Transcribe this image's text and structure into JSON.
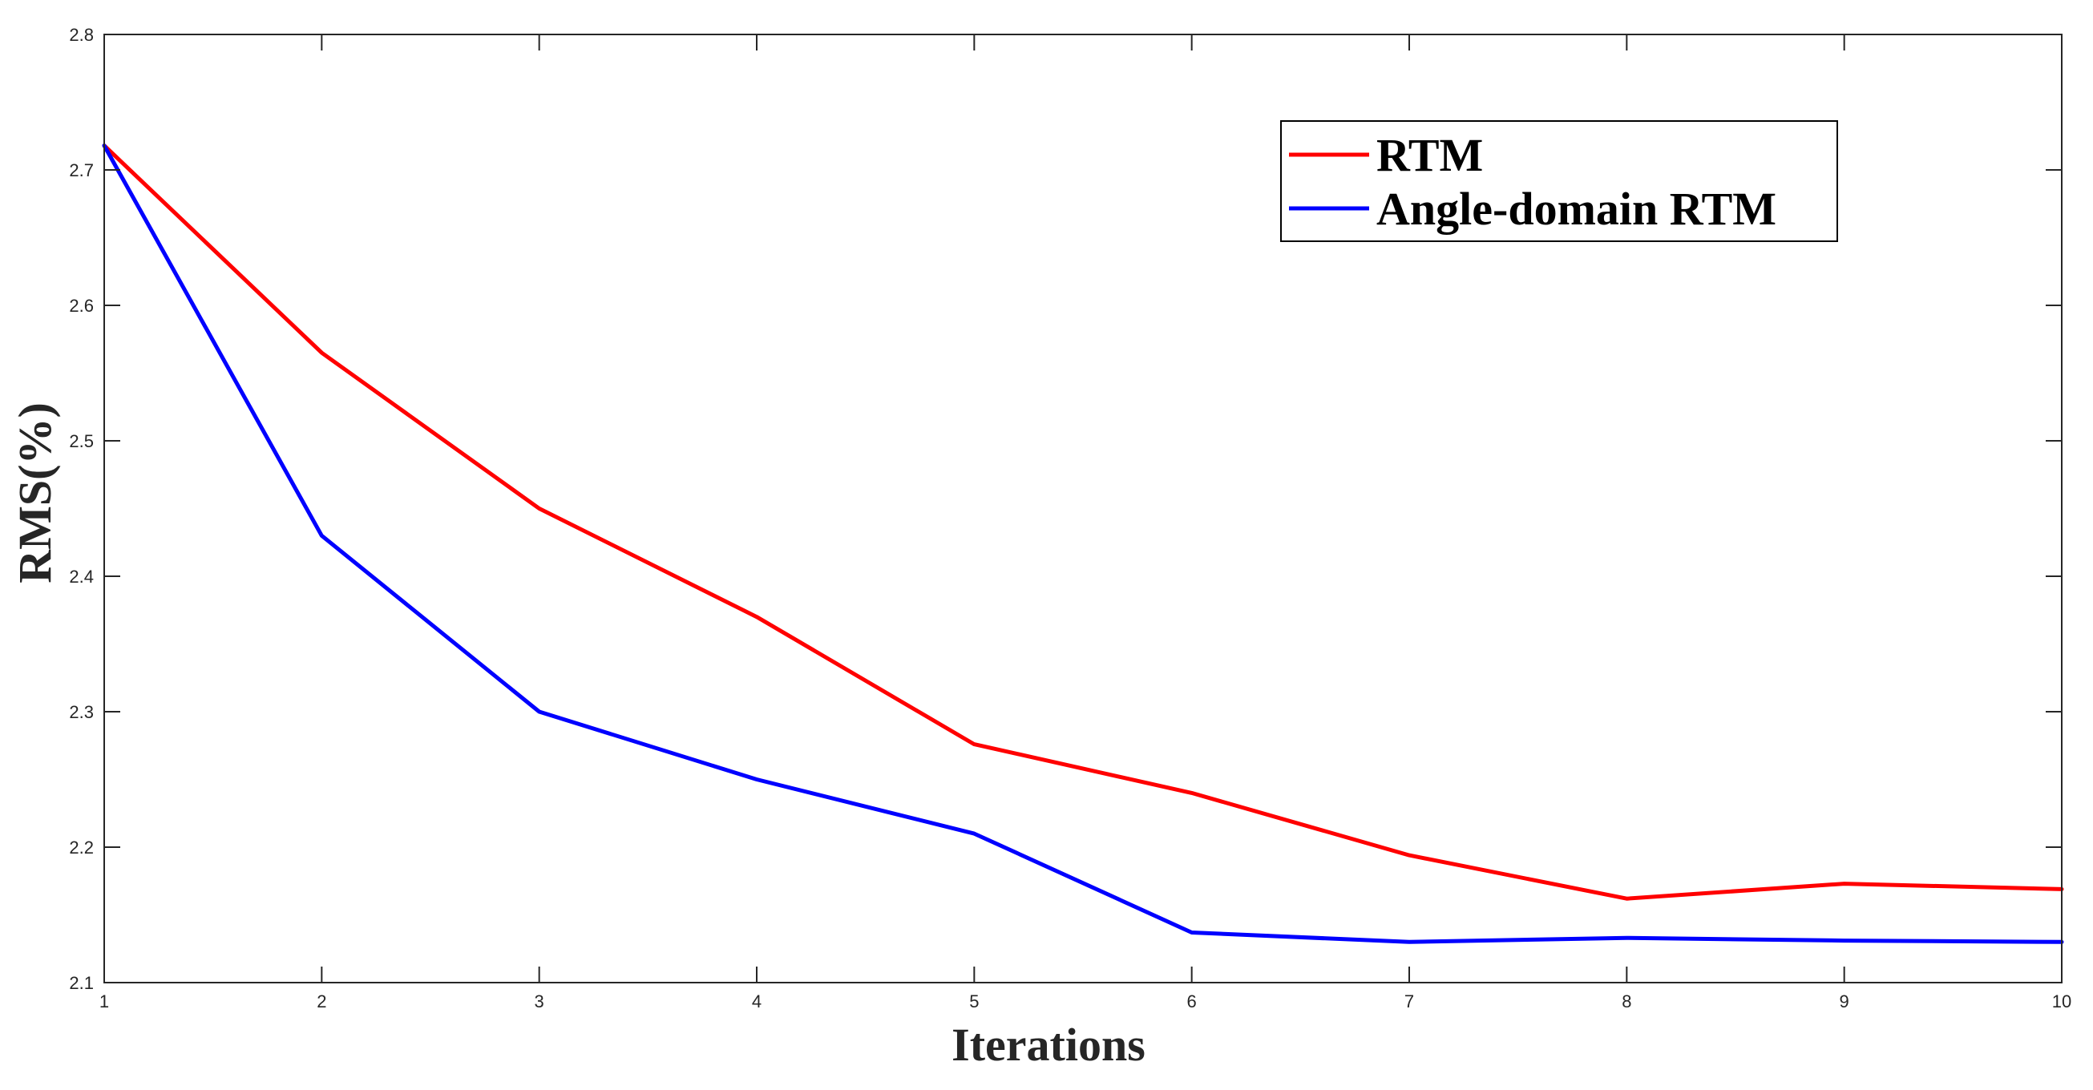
{
  "chart_data": {
    "type": "line",
    "title": "",
    "xlabel": "Iterations",
    "ylabel": "RMS(%)",
    "xlim": [
      1,
      10
    ],
    "ylim": [
      2.1,
      2.8
    ],
    "xticks": [
      1,
      2,
      3,
      4,
      5,
      6,
      7,
      8,
      9,
      10
    ],
    "yticks": [
      2.1,
      2.2,
      2.3,
      2.4,
      2.5,
      2.6,
      2.7,
      2.8
    ],
    "x": [
      1,
      2,
      3,
      4,
      5,
      6,
      7,
      8,
      9,
      10
    ],
    "grid": false,
    "legend_position": "top-right",
    "series": [
      {
        "name": "RTM",
        "color": "#ff0000",
        "values": [
          2.718,
          2.565,
          2.45,
          2.37,
          2.276,
          2.24,
          2.194,
          2.162,
          2.173,
          2.169
        ]
      },
      {
        "name": "Angle-domain RTM",
        "color": "#0000ff",
        "values": [
          2.718,
          2.43,
          2.3,
          2.25,
          2.21,
          2.137,
          2.13,
          2.133,
          2.131,
          2.13
        ]
      }
    ]
  }
}
